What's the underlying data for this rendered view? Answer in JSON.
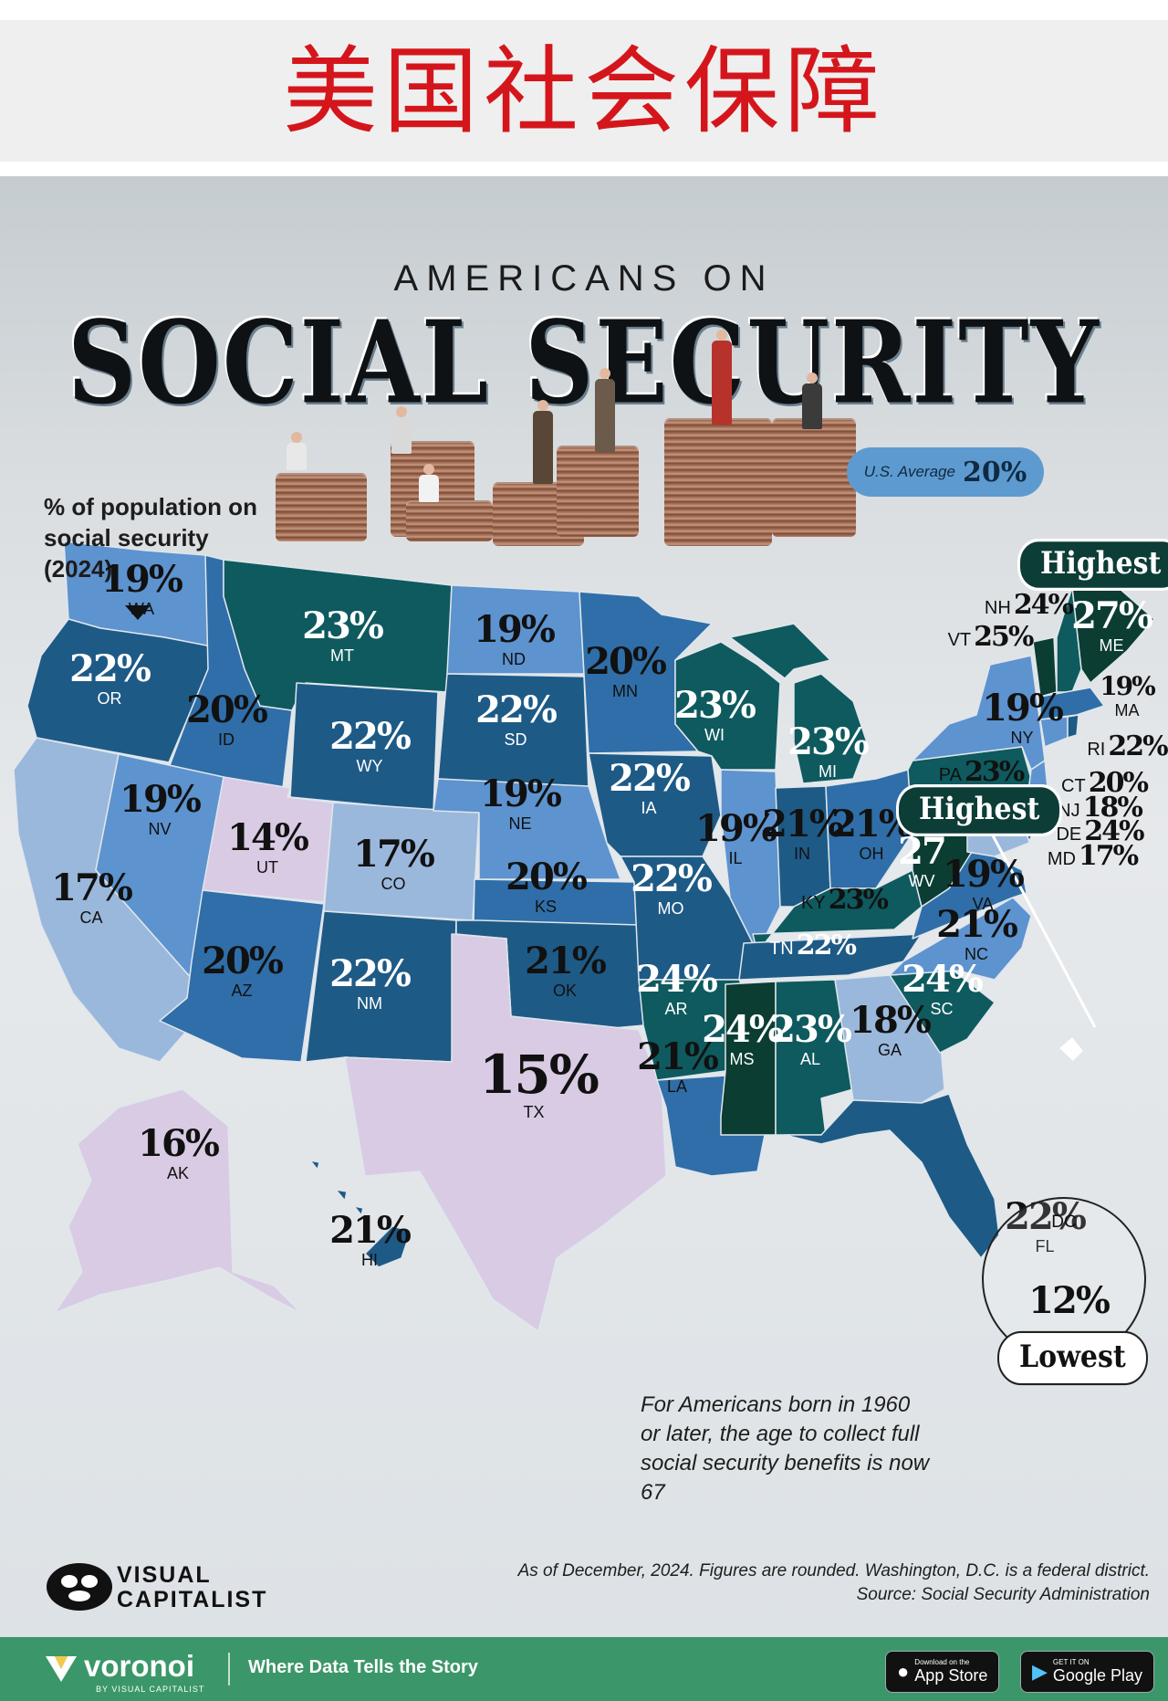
{
  "banner": {
    "title": "美国社会保障"
  },
  "poster": {
    "title_top": "AMERICANS ON",
    "title_main": "SOCIAL SECURITY",
    "population_note": "% of population on social security (2024)",
    "us_average": {
      "label": "U.S. Average",
      "value": "20%"
    },
    "highest_callouts": [
      "Highest",
      "Highest"
    ],
    "lowest_callout": "Lowest",
    "age_note": "For Americans born in 1960 or later, the age to collect full social security benefits is now 67",
    "footnote": "As of December, 2024. Figures are rounded. Washington, D.C. is a federal district.",
    "source": "Source: Social Security Administration",
    "brand": {
      "line1": "VISUAL",
      "line2": "CAPITALIST"
    }
  },
  "map": {
    "states": [
      {
        "code": "WA",
        "value": "19%"
      },
      {
        "code": "OR",
        "value": "22%"
      },
      {
        "code": "CA",
        "value": "17%"
      },
      {
        "code": "ID",
        "value": "20%"
      },
      {
        "code": "NV",
        "value": "19%"
      },
      {
        "code": "MT",
        "value": "23%"
      },
      {
        "code": "WY",
        "value": "22%"
      },
      {
        "code": "UT",
        "value": "14%"
      },
      {
        "code": "CO",
        "value": "17%"
      },
      {
        "code": "AZ",
        "value": "20%"
      },
      {
        "code": "NM",
        "value": "22%"
      },
      {
        "code": "ND",
        "value": "19%"
      },
      {
        "code": "SD",
        "value": "22%"
      },
      {
        "code": "NE",
        "value": "19%"
      },
      {
        "code": "KS",
        "value": "20%"
      },
      {
        "code": "OK",
        "value": "21%"
      },
      {
        "code": "TX",
        "value": "15%"
      },
      {
        "code": "MN",
        "value": "20%"
      },
      {
        "code": "IA",
        "value": "22%"
      },
      {
        "code": "MO",
        "value": "22%"
      },
      {
        "code": "AR",
        "value": "24%"
      },
      {
        "code": "LA",
        "value": "21%"
      },
      {
        "code": "WI",
        "value": "23%"
      },
      {
        "code": "IL",
        "value": "19%"
      },
      {
        "code": "MI",
        "value": "23%"
      },
      {
        "code": "IN",
        "value": "21%"
      },
      {
        "code": "OH",
        "value": "21%"
      },
      {
        "code": "KY",
        "value": "23%"
      },
      {
        "code": "TN",
        "value": "22%"
      },
      {
        "code": "MS",
        "value": "24%"
      },
      {
        "code": "AL",
        "value": "23%"
      },
      {
        "code": "GA",
        "value": "18%"
      },
      {
        "code": "FL",
        "value": "22%"
      },
      {
        "code": "SC",
        "value": "24%"
      },
      {
        "code": "NC",
        "value": "21%"
      },
      {
        "code": "VA",
        "value": "19%"
      },
      {
        "code": "WV",
        "value": "27"
      },
      {
        "code": "PA",
        "value": "23%"
      },
      {
        "code": "NY",
        "value": "19%"
      },
      {
        "code": "VT",
        "value": "25%"
      },
      {
        "code": "NH",
        "value": "24%"
      },
      {
        "code": "ME",
        "value": "27%"
      },
      {
        "code": "MA",
        "value": "19%"
      },
      {
        "code": "RI",
        "value": "22%"
      },
      {
        "code": "CT",
        "value": "20%"
      },
      {
        "code": "NJ",
        "value": "18%"
      },
      {
        "code": "DE",
        "value": "24%"
      },
      {
        "code": "MD",
        "value": "17%"
      },
      {
        "code": "AK",
        "value": "16%"
      },
      {
        "code": "HI",
        "value": "21%"
      },
      {
        "code": "DC",
        "value": "12%"
      }
    ],
    "colors": {
      "lowest": "#d8cbe3",
      "low": "#9ab8dc",
      "mid_low": "#5d93cf",
      "mid": "#2f6ea8",
      "high": "#1e5a86",
      "higher": "#0e5a5e",
      "highest": "#0b3d33"
    }
  },
  "footer": {
    "brand": "voronoi",
    "brand_sub": "BY VISUAL CAPITALIST",
    "tagline": "Where Data Tells the Story",
    "app_store": {
      "small": "Download on the",
      "big": "App Store"
    },
    "google_play": {
      "small": "GET IT ON",
      "big": "Google Play"
    }
  }
}
